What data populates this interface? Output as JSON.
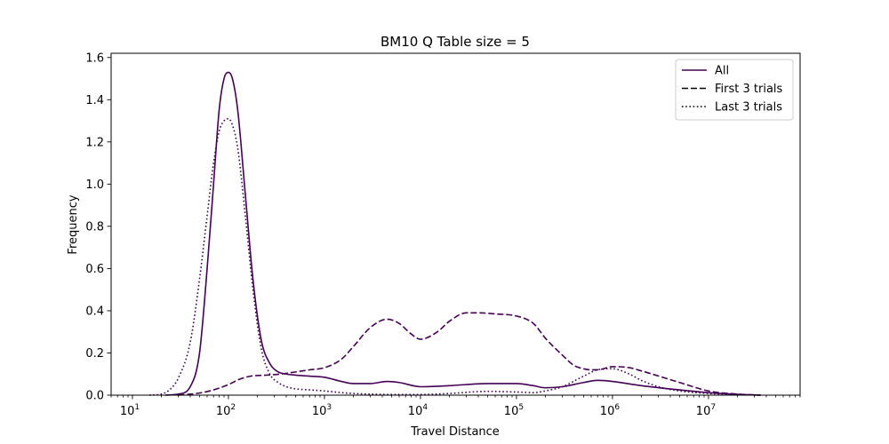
{
  "chart_data": {
    "type": "line",
    "title": "BM10 Q Table size = 5",
    "xlabel": "Travel Distance",
    "ylabel": "Frequency",
    "xscale": "log",
    "xlim": [
      6,
      90000000
    ],
    "ylim": [
      0,
      1.62
    ],
    "x_ticks": [
      {
        "value": 10,
        "base": "10",
        "exp": "1"
      },
      {
        "value": 100,
        "base": "10",
        "exp": "2"
      },
      {
        "value": 1000,
        "base": "10",
        "exp": "3"
      },
      {
        "value": 10000,
        "base": "10",
        "exp": "4"
      },
      {
        "value": 100000,
        "base": "10",
        "exp": "5"
      },
      {
        "value": 1000000,
        "base": "10",
        "exp": "6"
      },
      {
        "value": 10000000,
        "base": "10",
        "exp": "7"
      }
    ],
    "y_ticks": [
      "0.0",
      "0.2",
      "0.4",
      "0.6",
      "0.8",
      "1.0",
      "1.2",
      "1.4",
      "1.6"
    ],
    "grid": false,
    "legend": {
      "placement": "top-right",
      "entries": [
        {
          "label": "All",
          "dash": "solid"
        },
        {
          "label": "First 3 trials",
          "dash": "dashed"
        },
        {
          "label": "Last 3 trials",
          "dash": "dotted"
        }
      ]
    },
    "line_color": "#440154",
    "legend_line_color": "#000000",
    "series": [
      {
        "name": "All",
        "dash": "solid",
        "x": [
          22,
          30,
          40,
          50,
          60,
          70,
          80,
          90,
          100,
          110,
          125,
          150,
          180,
          220,
          270,
          330,
          400,
          500,
          700,
          1000,
          1500,
          2000,
          3000,
          4500,
          6000,
          10000,
          20000,
          50000,
          100000,
          150000,
          200000,
          300000,
          500000,
          700000,
          1000000,
          2000000,
          5000000,
          10000000,
          20000000,
          35000000
        ],
        "y": [
          0,
          0.005,
          0.04,
          0.2,
          0.6,
          1.0,
          1.35,
          1.5,
          1.53,
          1.5,
          1.35,
          0.95,
          0.55,
          0.26,
          0.15,
          0.11,
          0.1,
          0.095,
          0.09,
          0.085,
          0.065,
          0.055,
          0.055,
          0.065,
          0.06,
          0.04,
          0.045,
          0.055,
          0.055,
          0.045,
          0.035,
          0.04,
          0.06,
          0.07,
          0.065,
          0.045,
          0.025,
          0.012,
          0.004,
          0
        ]
      },
      {
        "name": "First 3 trials",
        "dash": "dashed",
        "x": [
          30,
          50,
          70,
          100,
          130,
          170,
          250,
          350,
          500,
          700,
          1000,
          1500,
          2000,
          3000,
          4500,
          6000,
          8000,
          10000,
          15000,
          20000,
          30000,
          40000,
          60000,
          100000,
          150000,
          200000,
          300000,
          400000,
          500000,
          600000,
          700000,
          1000000,
          1500000,
          2000000,
          5000000,
          10000000,
          20000000,
          35000000
        ],
        "y": [
          0,
          0.01,
          0.025,
          0.05,
          0.075,
          0.09,
          0.095,
          0.1,
          0.11,
          0.12,
          0.13,
          0.17,
          0.23,
          0.32,
          0.36,
          0.34,
          0.29,
          0.265,
          0.3,
          0.35,
          0.39,
          0.39,
          0.385,
          0.375,
          0.34,
          0.27,
          0.19,
          0.14,
          0.125,
          0.12,
          0.12,
          0.135,
          0.13,
          0.115,
          0.06,
          0.02,
          0.005,
          0
        ]
      },
      {
        "name": "Last 3 trials",
        "dash": "dotted",
        "x": [
          15,
          20,
          25,
          30,
          40,
          50,
          60,
          70,
          80,
          90,
          100,
          110,
          125,
          150,
          180,
          220,
          270,
          330,
          400,
          500,
          700,
          1000,
          1500,
          2000,
          3000,
          5000,
          10000,
          20000,
          50000,
          100000,
          150000,
          200000,
          300000,
          500000,
          700000,
          1000000,
          1500000,
          2000000,
          3000000,
          5000000,
          10000000,
          20000000,
          35000000
        ],
        "y": [
          0,
          0.005,
          0.03,
          0.08,
          0.25,
          0.55,
          0.85,
          1.1,
          1.25,
          1.3,
          1.31,
          1.28,
          1.17,
          0.85,
          0.5,
          0.22,
          0.1,
          0.06,
          0.04,
          0.03,
          0.025,
          0.02,
          0.012,
          0.008,
          0.005,
          0.003,
          0.003,
          0.008,
          0.018,
          0.015,
          0.012,
          0.02,
          0.04,
          0.09,
          0.12,
          0.125,
          0.1,
          0.07,
          0.04,
          0.02,
          0.008,
          0.003,
          0
        ]
      }
    ]
  }
}
